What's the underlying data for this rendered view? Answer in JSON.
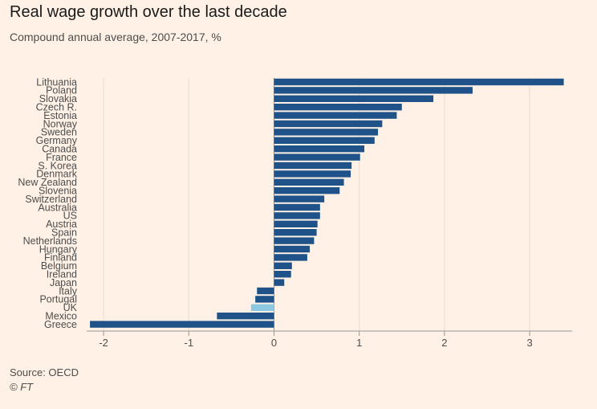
{
  "title": "Real wage growth over the last decade",
  "subtitle": "Compound annual average, 2007-2017, %",
  "source": "Source: OECD",
  "credit": "© FT",
  "colors": {
    "bar": "#1f5288",
    "highlight": "#8dc8e2",
    "grid": "#e8dccd",
    "zero_line": "#999999"
  },
  "chart_data": {
    "type": "bar",
    "orientation": "horizontal",
    "categories": [
      "Lithuania",
      "Poland",
      "Slovakia",
      "Czech R.",
      "Estonia",
      "Norway",
      "Sweden",
      "Germany",
      "Canada",
      "France",
      "S. Korea",
      "Denmark",
      "New Zealand",
      "Slovenia",
      "Switzerland",
      "Australia",
      "US",
      "Austria",
      "Spain",
      "Netherlands",
      "Hungary",
      "Finland",
      "Belgium",
      "Ireland",
      "Japan",
      "Italy",
      "Portugal",
      "UK",
      "Mexico",
      "Greece"
    ],
    "values": [
      3.4,
      2.33,
      1.87,
      1.5,
      1.44,
      1.27,
      1.22,
      1.18,
      1.06,
      1.01,
      0.91,
      0.9,
      0.82,
      0.77,
      0.59,
      0.54,
      0.54,
      0.51,
      0.5,
      0.47,
      0.42,
      0.39,
      0.21,
      0.2,
      0.12,
      -0.2,
      -0.22,
      -0.27,
      -0.67,
      -2.16
    ],
    "highlight": "UK",
    "xlim": [
      -2.2,
      3.5
    ],
    "xticks": [
      -2,
      -1,
      0,
      1,
      2,
      3
    ],
    "xtick_labels": [
      "-2",
      "-1",
      "0",
      "1",
      "2",
      "3"
    ],
    "grid": true
  }
}
